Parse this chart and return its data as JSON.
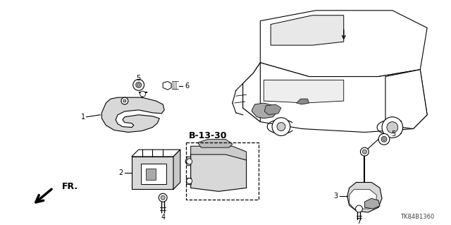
{
  "background_color": "#ffffff",
  "line_color": "#000000",
  "part_number": "TK84B1360",
  "ref_label": "B-13-30",
  "fr_label": "FR.",
  "fig_width": 6.4,
  "fig_height": 3.19,
  "dpi": 100,
  "text_color": "#222222",
  "gray_fill": "#b0b0b0",
  "light_gray": "#d8d8d8"
}
